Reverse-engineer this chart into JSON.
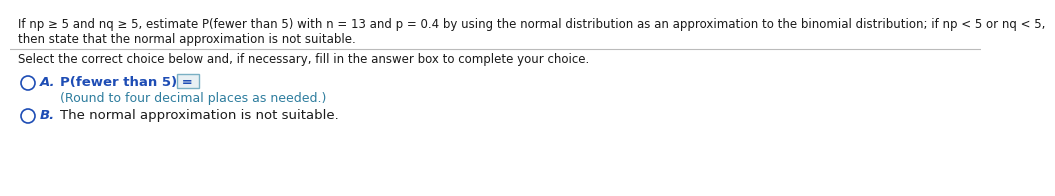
{
  "line1": "If np ≥ 5 and nq ≥ 5, estimate P(fewer than 5) with n = 13 and p = 0.4 by using the normal distribution as an approximation to the binomial distribution; if np < 5 or nq < 5,",
  "line2": "then state that the normal approximation is not suitable.",
  "select_text": "Select the correct choice below and, if necessary, fill in the answer box to complete your choice.",
  "option_a_label": "A.",
  "option_a_text": "P(fewer than 5) =",
  "option_a_sub": "(Round to four decimal places as needed.)",
  "option_b_label": "B.",
  "option_b_text": "The normal approximation is not suitable.",
  "text_color": "#1a1a1a",
  "blue_color": "#1e4db5",
  "teal_color": "#2e7d9e",
  "bg_color": "#ffffff",
  "font_size_main": 8.5,
  "font_size_options": 9.5,
  "font_size_sub": 9.0
}
